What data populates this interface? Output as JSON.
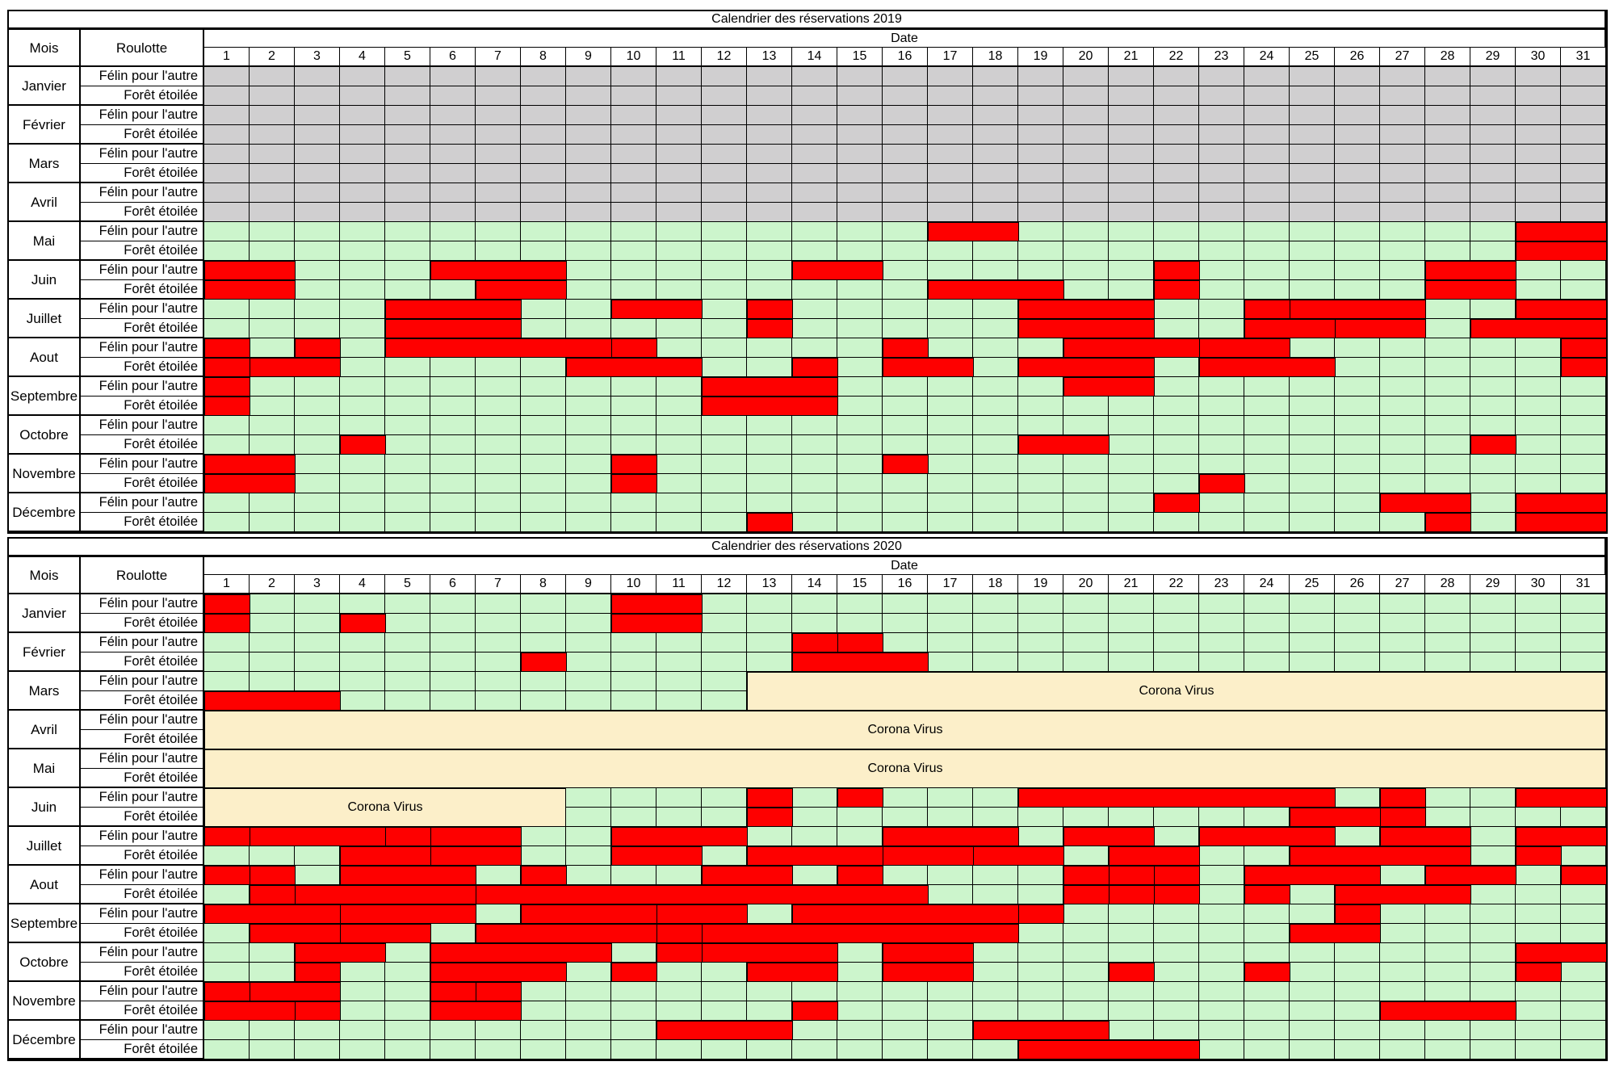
{
  "colors": {
    "booked": "#fe0000",
    "free": "#ccf5cc",
    "closed": "#d0cfd0",
    "corona": "#fcefc9"
  },
  "headers": {
    "mois": "Mois",
    "roulotte": "Roulotte",
    "date": "Date"
  },
  "days": [
    "1",
    "2",
    "3",
    "4",
    "5",
    "6",
    "7",
    "8",
    "9",
    "10",
    "11",
    "12",
    "13",
    "14",
    "15",
    "16",
    "17",
    "18",
    "19",
    "20",
    "21",
    "22",
    "23",
    "24",
    "25",
    "26",
    "27",
    "28",
    "29",
    "30",
    "31"
  ],
  "caravans": [
    "Félin pour l'autre",
    "Forêt étoilée"
  ],
  "calendars": [
    {
      "title": "Calendrier des réservations 2019",
      "months": [
        {
          "name": "Janvier",
          "status": "closed",
          "bookings": [
            [],
            []
          ]
        },
        {
          "name": "Février",
          "status": "closed",
          "bookings": [
            [],
            []
          ]
        },
        {
          "name": "Mars",
          "status": "closed",
          "bookings": [
            [],
            []
          ]
        },
        {
          "name": "Avril",
          "status": "closed",
          "bookings": [
            [],
            []
          ]
        },
        {
          "name": "Mai",
          "bookings": [
            [
              [
                17,
                18
              ],
              [
                30,
                31
              ]
            ],
            [
              [
                30,
                31
              ]
            ]
          ]
        },
        {
          "name": "Juin",
          "bookings": [
            [
              [
                1,
                2
              ],
              [
                6,
                8
              ],
              [
                14,
                15
              ],
              [
                22,
                22
              ],
              [
                28,
                29
              ]
            ],
            [
              [
                1,
                2
              ],
              [
                7,
                8
              ],
              [
                17,
                19
              ],
              [
                22,
                22
              ],
              [
                28,
                29
              ]
            ]
          ]
        },
        {
          "name": "Juillet",
          "bookings": [
            [
              [
                5,
                7
              ],
              [
                10,
                11
              ],
              [
                13,
                13
              ],
              [
                19,
                21
              ],
              [
                24,
                24
              ],
              [
                25,
                27
              ],
              [
                30,
                31
              ]
            ],
            [
              [
                5,
                7
              ],
              [
                13,
                13
              ],
              [
                19,
                21
              ],
              [
                24,
                25
              ],
              [
                26,
                27
              ],
              [
                29,
                31
              ]
            ]
          ]
        },
        {
          "name": "Aout",
          "bookings": [
            [
              [
                1,
                1
              ],
              [
                3,
                3
              ],
              [
                5,
                9
              ],
              [
                10,
                10
              ],
              [
                16,
                16
              ],
              [
                20,
                22
              ],
              [
                23,
                24
              ],
              [
                31,
                31
              ]
            ],
            [
              [
                1,
                1
              ],
              [
                2,
                3
              ],
              [
                9,
                11
              ],
              [
                14,
                14
              ],
              [
                16,
                17
              ],
              [
                19,
                21
              ],
              [
                23,
                25
              ],
              [
                31,
                31
              ]
            ]
          ]
        },
        {
          "name": "Septembre",
          "bookings": [
            [
              [
                1,
                1
              ],
              [
                12,
                14
              ],
              [
                20,
                21
              ]
            ],
            [
              [
                1,
                1
              ],
              [
                12,
                14
              ]
            ]
          ]
        },
        {
          "name": "Octobre",
          "bookings": [
            [],
            [
              [
                4,
                4
              ],
              [
                19,
                20
              ],
              [
                29,
                29
              ]
            ]
          ]
        },
        {
          "name": "Novembre",
          "bookings": [
            [
              [
                1,
                2
              ],
              [
                10,
                10
              ],
              [
                16,
                16
              ]
            ],
            [
              [
                1,
                2
              ],
              [
                10,
                10
              ],
              [
                23,
                23
              ]
            ]
          ]
        },
        {
          "name": "Décembre",
          "bookings": [
            [
              [
                22,
                22
              ],
              [
                27,
                28
              ],
              [
                30,
                31
              ]
            ],
            [
              [
                13,
                13
              ],
              [
                28,
                28
              ],
              [
                30,
                31
              ]
            ]
          ]
        }
      ]
    },
    {
      "title": "Calendrier des réservations 2020",
      "months": [
        {
          "name": "Janvier",
          "bookings": [
            [
              [
                1,
                1
              ],
              [
                10,
                11
              ]
            ],
            [
              [
                1,
                1
              ],
              [
                4,
                4
              ],
              [
                10,
                11
              ]
            ]
          ]
        },
        {
          "name": "Février",
          "bookings": [
            [
              [
                14,
                14
              ],
              [
                15,
                15
              ]
            ],
            [
              [
                8,
                8
              ],
              [
                14,
                16
              ]
            ]
          ]
        },
        {
          "name": "Mars",
          "bookings": [
            [],
            [
              [
                1,
                3
              ]
            ]
          ],
          "corona": [
            {
              "rows": [
                0,
                1
              ],
              "from": 13,
              "to": 31
            }
          ]
        },
        {
          "name": "Avril",
          "bookings": [
            [],
            []
          ],
          "corona": [
            {
              "rows": [
                0,
                1
              ],
              "from": 1,
              "to": 31
            }
          ]
        },
        {
          "name": "Mai",
          "bookings": [
            [],
            []
          ],
          "corona": [
            {
              "rows": [
                0,
                1
              ],
              "from": 1,
              "to": 31
            }
          ]
        },
        {
          "name": "Juin",
          "bookings": [
            [
              [
                13,
                13
              ],
              [
                15,
                15
              ],
              [
                19,
                25
              ],
              [
                27,
                27
              ],
              [
                30,
                31
              ]
            ],
            [
              [
                13,
                13
              ],
              [
                25,
                26
              ],
              [
                27,
                27
              ]
            ]
          ],
          "corona": [
            {
              "rows": [
                0,
                1
              ],
              "from": 1,
              "to": 8
            }
          ]
        },
        {
          "name": "Juillet",
          "bookings": [
            [
              [
                1,
                1
              ],
              [
                2,
                4
              ],
              [
                5,
                5
              ],
              [
                6,
                7
              ],
              [
                10,
                12
              ],
              [
                16,
                18
              ],
              [
                20,
                21
              ],
              [
                23,
                25
              ],
              [
                27,
                28
              ],
              [
                30,
                31
              ]
            ],
            [
              [
                4,
                5
              ],
              [
                6,
                7
              ],
              [
                10,
                11
              ],
              [
                13,
                15
              ],
              [
                16,
                17
              ],
              [
                18,
                19
              ],
              [
                21,
                22
              ],
              [
                25,
                28
              ],
              [
                30,
                30
              ]
            ]
          ]
        },
        {
          "name": "Aout",
          "bookings": [
            [
              [
                1,
                1
              ],
              [
                2,
                2
              ],
              [
                4,
                6
              ],
              [
                8,
                8
              ],
              [
                12,
                13
              ],
              [
                15,
                15
              ],
              [
                20,
                20
              ],
              [
                21,
                21
              ],
              [
                22,
                22
              ],
              [
                24,
                26
              ],
              [
                28,
                29
              ],
              [
                31,
                31
              ]
            ],
            [
              [
                2,
                2
              ],
              [
                3,
                6
              ],
              [
                7,
                16
              ],
              [
                20,
                20
              ],
              [
                21,
                21
              ],
              [
                22,
                22
              ],
              [
                24,
                24
              ],
              [
                26,
                28
              ]
            ]
          ]
        },
        {
          "name": "Septembre",
          "bookings": [
            [
              [
                1,
                3
              ],
              [
                4,
                6
              ],
              [
                8,
                10
              ],
              [
                11,
                12
              ],
              [
                14,
                18
              ],
              [
                19,
                19
              ],
              [
                26,
                26
              ]
            ],
            [
              [
                2,
                4
              ],
              [
                4,
                5
              ],
              [
                7,
                10
              ],
              [
                11,
                11
              ],
              [
                12,
                18
              ],
              [
                25,
                26
              ]
            ]
          ]
        },
        {
          "name": "Octobre",
          "bookings": [
            [
              [
                3,
                4
              ],
              [
                6,
                9
              ],
              [
                11,
                11
              ],
              [
                12,
                14
              ],
              [
                16,
                17
              ],
              [
                30,
                31
              ]
            ],
            [
              [
                3,
                3
              ],
              [
                6,
                8
              ],
              [
                10,
                10
              ],
              [
                13,
                14
              ],
              [
                16,
                17
              ],
              [
                21,
                21
              ],
              [
                24,
                24
              ],
              [
                30,
                30
              ]
            ]
          ]
        },
        {
          "name": "Novembre",
          "bookings": [
            [
              [
                1,
                1
              ],
              [
                2,
                3
              ],
              [
                6,
                6
              ],
              [
                7,
                7
              ]
            ],
            [
              [
                1,
                2
              ],
              [
                3,
                3
              ],
              [
                6,
                7
              ],
              [
                14,
                14
              ],
              [
                27,
                29
              ]
            ]
          ]
        },
        {
          "name": "Décembre",
          "bookings": [
            [
              [
                11,
                13
              ],
              [
                18,
                20
              ]
            ],
            [
              [
                19,
                22
              ]
            ]
          ]
        }
      ],
      "corona_label": "Corona Virus"
    }
  ]
}
